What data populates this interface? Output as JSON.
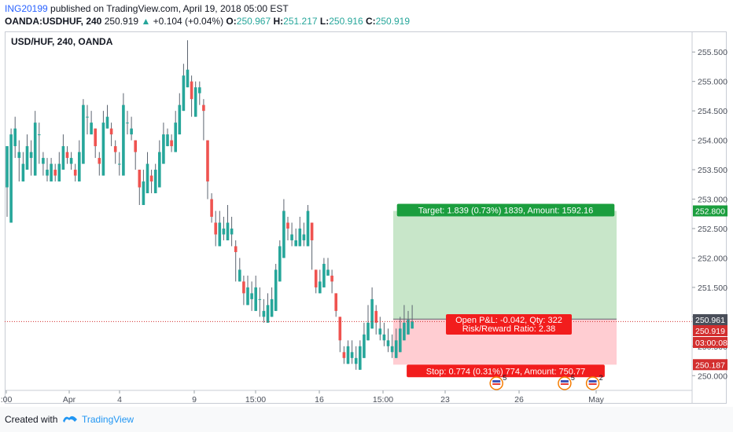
{
  "header": {
    "publisher": "ING20199",
    "published_text": "published on TradingView.com, April 19, 2018 05:00 EST",
    "symbol": "OANDA:USDHUF, 240",
    "last": "250.919",
    "change_arrow": "▲",
    "change": "+0.104 (+0.04%)",
    "o_label": "O:",
    "o": "250.967",
    "h_label": "H:",
    "h": "251.217",
    "l_label": "L:",
    "l": "250.916",
    "c_label": "C:",
    "c": "250.919"
  },
  "footer": {
    "created_with": "Created with",
    "brand": "TradingView"
  },
  "colors": {
    "up": "#26a69a",
    "down": "#ef5350",
    "target_zone": "#c8e6c9",
    "stop_zone": "#ffcdd2",
    "target_label": "#1b9e3e",
    "stop_label": "#f21d1d",
    "current_price_label": "#d32f2f",
    "accent": "#2962ff"
  },
  "chart_data": {
    "type": "candlestick",
    "title": "USD/HUF, 240, OANDA",
    "ylim": [
      249.75,
      255.85
    ],
    "y_ticks": [
      "250.000",
      "250.500",
      "251.000",
      "251.500",
      "252.000",
      "252.500",
      "253.000",
      "253.500",
      "254.000",
      "254.500",
      "255.000",
      "255.500"
    ],
    "x_ticks": [
      ":00",
      "Apr",
      "4",
      "9",
      "15:00",
      "16",
      "15:00",
      "23",
      "26",
      "May"
    ],
    "price_labels": [
      {
        "text": "252.800",
        "value": 252.8,
        "kind": "target"
      },
      {
        "text": "250.961",
        "value": 250.961,
        "kind": "entry"
      },
      {
        "text": "250.919",
        "value": 250.919,
        "kind": "current"
      },
      {
        "text": "03:00:08",
        "value": 250.78,
        "kind": "countdown"
      },
      {
        "text": "250.187",
        "value": 250.187,
        "kind": "stop"
      }
    ],
    "position": {
      "entry": 250.961,
      "target": 252.8,
      "stop": 250.187,
      "target_text": "Target: 1.839 (0.73%) 1839, Amount: 1592.16",
      "pnl_text": "Open P&L: -0.042, Qty: 322",
      "rr_text": "Risk/Reward Ratio: 2.38",
      "stop_text": "Stop: 0.774 (0.31%) 774, Amount: 750.77"
    },
    "events": [
      {
        "count": "5",
        "index": 122
      },
      {
        "count": "5",
        "index": 139
      },
      {
        "count": "2",
        "index": 146
      }
    ],
    "candles": [
      [
        253.2,
        253.9,
        252.7,
        252.6
      ],
      [
        252.6,
        254.1,
        253.9,
        254.2
      ],
      [
        253.9,
        254.2,
        253.7,
        254.4
      ],
      [
        253.7,
        253.8,
        253.3,
        254.0
      ],
      [
        253.3,
        253.6,
        253.5,
        253.8
      ],
      [
        253.5,
        253.9,
        253.7,
        254.1
      ],
      [
        253.7,
        253.8,
        253.4,
        254.0
      ],
      [
        253.4,
        254.3,
        254.1,
        254.5
      ],
      [
        254.1,
        254.1,
        253.6,
        254.3
      ],
      [
        253.6,
        253.7,
        253.4,
        253.8
      ],
      [
        253.4,
        253.5,
        253.3,
        253.7
      ],
      [
        253.3,
        253.6,
        253.5,
        253.7
      ],
      [
        253.5,
        253.4,
        253.3,
        253.6
      ],
      [
        253.3,
        253.6,
        253.5,
        253.8
      ],
      [
        253.5,
        253.9,
        253.8,
        254.1
      ],
      [
        253.8,
        253.7,
        253.6,
        253.9
      ],
      [
        253.6,
        253.7,
        253.5,
        253.8
      ],
      [
        253.5,
        253.4,
        253.3,
        253.6
      ],
      [
        253.3,
        253.8,
        253.6,
        254.0
      ],
      [
        253.6,
        254.6,
        254.4,
        254.7
      ],
      [
        254.4,
        254.4,
        254.1,
        254.6
      ],
      [
        254.1,
        254.3,
        254.2,
        254.5
      ],
      [
        254.2,
        253.9,
        253.7,
        254.1
      ],
      [
        253.7,
        253.6,
        253.4,
        253.8
      ],
      [
        253.4,
        254.3,
        254.2,
        254.5
      ],
      [
        254.2,
        254.4,
        254.2,
        254.6
      ],
      [
        254.2,
        254.1,
        253.9,
        254.3
      ],
      [
        253.9,
        253.8,
        253.6,
        254.0
      ],
      [
        253.6,
        253.6,
        253.4,
        253.8
      ],
      [
        253.4,
        254.6,
        254.3,
        254.8
      ],
      [
        254.3,
        254.3,
        254.1,
        254.5
      ],
      [
        254.1,
        254.2,
        254.0,
        254.4
      ],
      [
        254.0,
        253.8,
        253.5,
        254.0
      ],
      [
        253.5,
        253.2,
        252.9,
        253.4
      ],
      [
        252.9,
        253.3,
        253.1,
        253.5
      ],
      [
        253.1,
        253.6,
        253.4,
        253.8
      ],
      [
        253.4,
        253.3,
        253.1,
        253.5
      ],
      [
        253.1,
        253.5,
        253.2,
        253.6
      ],
      [
        253.2,
        253.8,
        253.6,
        254.0
      ],
      [
        253.6,
        254.1,
        253.9,
        254.3
      ],
      [
        253.9,
        254.1,
        254.0,
        254.2
      ],
      [
        254.0,
        253.9,
        253.8,
        254.1
      ],
      [
        253.8,
        254.3,
        254.1,
        254.5
      ],
      [
        254.1,
        254.6,
        254.5,
        254.8
      ],
      [
        254.5,
        255.1,
        254.9,
        255.3
      ],
      [
        254.9,
        255.2,
        255.0,
        255.7
      ],
      [
        255.0,
        254.7,
        254.4,
        255.1
      ],
      [
        254.4,
        254.9,
        254.8,
        255.0
      ],
      [
        254.8,
        254.9,
        254.6,
        255.0
      ],
      [
        254.6,
        254.5,
        254.0,
        254.7
      ],
      [
        254.0,
        253.3,
        253.0,
        253.4
      ],
      [
        253.0,
        252.7,
        252.6,
        253.1
      ],
      [
        252.6,
        252.4,
        252.2,
        252.8
      ],
      [
        252.2,
        252.6,
        252.4,
        252.8
      ],
      [
        252.4,
        252.5,
        252.3,
        252.7
      ],
      [
        252.3,
        252.6,
        252.4,
        252.9
      ],
      [
        252.4,
        252.5,
        252.2,
        252.7
      ],
      [
        252.2,
        252.1,
        251.6,
        252.3
      ],
      [
        251.6,
        251.8,
        251.6,
        252.0
      ],
      [
        251.6,
        251.4,
        251.2,
        251.7
      ],
      [
        251.2,
        251.5,
        251.3,
        251.7
      ],
      [
        251.3,
        251.4,
        251.1,
        251.6
      ],
      [
        251.1,
        251.5,
        251.3,
        251.7
      ],
      [
        251.3,
        251.3,
        251.0,
        251.5
      ],
      [
        251.0,
        251.1,
        250.9,
        251.3
      ],
      [
        250.9,
        251.2,
        251.0,
        251.4
      ],
      [
        251.0,
        251.3,
        251.1,
        251.5
      ],
      [
        251.1,
        251.8,
        251.6,
        251.9
      ],
      [
        251.6,
        252.2,
        252.0,
        252.3
      ],
      [
        252.0,
        252.8,
        252.6,
        253.0
      ],
      [
        252.6,
        252.5,
        252.3,
        252.7
      ],
      [
        252.3,
        252.4,
        252.2,
        252.6
      ],
      [
        252.2,
        252.3,
        252.2,
        252.5
      ],
      [
        252.2,
        252.5,
        252.3,
        252.7
      ],
      [
        252.3,
        252.4,
        252.2,
        252.6
      ],
      [
        252.2,
        252.8,
        252.6,
        252.9
      ],
      [
        252.6,
        252.3,
        251.8,
        252.4
      ],
      [
        251.8,
        251.5,
        251.4,
        251.7
      ],
      [
        251.4,
        251.6,
        251.5,
        251.8
      ],
      [
        251.5,
        251.9,
        251.7,
        252.0
      ],
      [
        251.7,
        251.8,
        251.7,
        252.0
      ],
      [
        251.7,
        251.6,
        251.4,
        251.8
      ],
      [
        251.4,
        251.1,
        251.0,
        251.3
      ],
      [
        251.0,
        250.6,
        250.4,
        250.8
      ],
      [
        250.4,
        250.3,
        250.2,
        250.5
      ],
      [
        250.2,
        250.5,
        250.3,
        250.6
      ],
      [
        250.3,
        250.4,
        250.2,
        250.6
      ],
      [
        250.2,
        250.3,
        250.1,
        250.5
      ],
      [
        250.1,
        250.5,
        250.3,
        250.6
      ],
      [
        250.3,
        250.7,
        250.6,
        250.9
      ],
      [
        250.6,
        250.9,
        250.8,
        251.2
      ],
      [
        250.8,
        251.3,
        251.1,
        251.5
      ],
      [
        251.1,
        250.9,
        250.7,
        251.2
      ],
      [
        250.7,
        250.8,
        250.6,
        251.0
      ],
      [
        250.6,
        250.7,
        250.5,
        250.9
      ],
      [
        250.5,
        250.6,
        250.4,
        250.8
      ],
      [
        250.4,
        250.5,
        250.3,
        250.7
      ],
      [
        250.3,
        250.6,
        250.4,
        250.8
      ],
      [
        250.4,
        250.8,
        250.6,
        251.0
      ],
      [
        250.6,
        250.9,
        250.7,
        251.2
      ],
      [
        250.7,
        250.95,
        250.8,
        251.1
      ],
      [
        250.8,
        250.92,
        250.9,
        251.2
      ]
    ]
  }
}
